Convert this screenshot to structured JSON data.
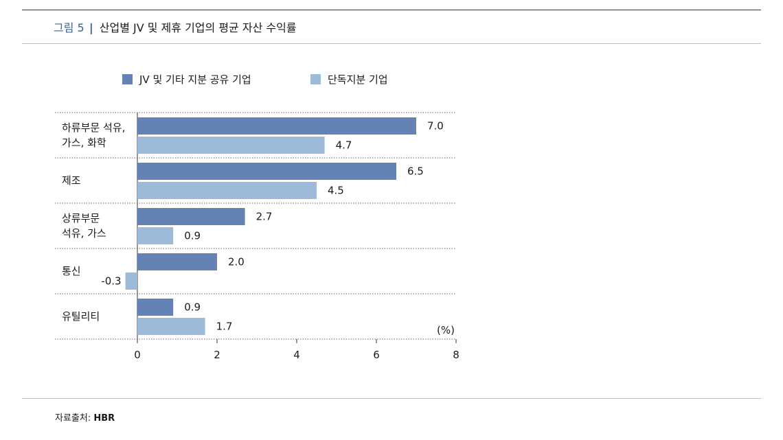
{
  "header": {
    "figure_label": "그림 5",
    "separator": "|",
    "title": "산업별 JV 및 제휴 기업의 평균 자산 수익률"
  },
  "footer": {
    "source_label": "자료출처:",
    "source_value": "HBR"
  },
  "colors": {
    "series_jv": "#6482b4",
    "series_sole": "#9dbad9",
    "accent": "#3d5f93"
  },
  "chart_data": {
    "type": "bar",
    "orientation": "horizontal",
    "unit_label": "(%)",
    "xlim": [
      0,
      8
    ],
    "x_ticks": [
      0,
      2,
      4,
      6,
      8
    ],
    "grid": false,
    "legend_position": "top",
    "categories": [
      {
        "lines": [
          "하류부문 석유,",
          "가스, 화학"
        ]
      },
      {
        "lines": [
          "제조"
        ]
      },
      {
        "lines": [
          "상류부문",
          "석유, 가스"
        ]
      },
      {
        "lines": [
          "통신"
        ]
      },
      {
        "lines": [
          "유틸리티"
        ]
      }
    ],
    "series": [
      {
        "name": "JV 및 기타 지분 공유 기업",
        "values": [
          7.0,
          6.5,
          2.7,
          2.0,
          0.9
        ],
        "labels": [
          "7.0",
          "6.5",
          "2.7",
          "2.0",
          "0.9"
        ]
      },
      {
        "name": "단독지분 기업",
        "values": [
          4.7,
          4.5,
          0.9,
          -0.3,
          1.7
        ],
        "labels": [
          "4.7",
          "4.5",
          "0.9",
          "-0.3",
          "1.7"
        ]
      }
    ]
  }
}
